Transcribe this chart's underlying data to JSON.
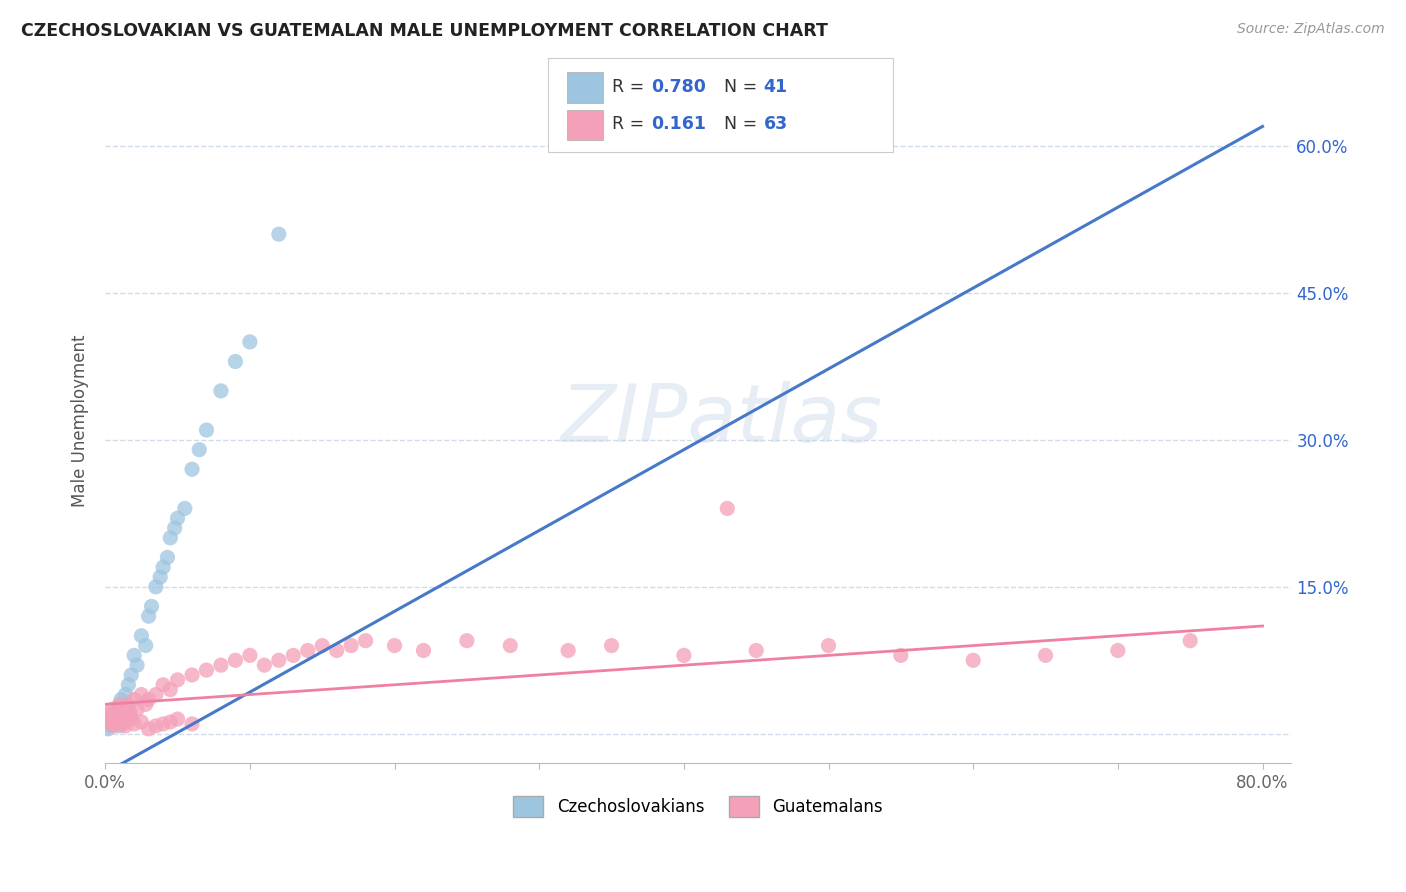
{
  "title": "CZECHOSLOVAKIAN VS GUATEMALAN MALE UNEMPLOYMENT CORRELATION CHART",
  "source": "Source: ZipAtlas.com",
  "ylabel": "Male Unemployment",
  "watermark": "ZIPatlas",
  "czech_scatter_x": [
    0.002,
    0.003,
    0.004,
    0.005,
    0.005,
    0.006,
    0.007,
    0.008,
    0.008,
    0.009,
    0.01,
    0.01,
    0.011,
    0.012,
    0.013,
    0.014,
    0.015,
    0.016,
    0.017,
    0.018,
    0.02,
    0.022,
    0.025,
    0.028,
    0.03,
    0.032,
    0.035,
    0.038,
    0.04,
    0.043,
    0.045,
    0.048,
    0.05,
    0.055,
    0.06,
    0.065,
    0.07,
    0.08,
    0.09,
    0.1,
    0.12
  ],
  "czech_scatter_y": [
    0.005,
    0.008,
    0.01,
    0.015,
    0.02,
    0.012,
    0.018,
    0.025,
    0.01,
    0.022,
    0.03,
    0.008,
    0.035,
    0.02,
    0.015,
    0.04,
    0.025,
    0.05,
    0.018,
    0.06,
    0.08,
    0.07,
    0.1,
    0.09,
    0.12,
    0.13,
    0.15,
    0.16,
    0.17,
    0.18,
    0.2,
    0.21,
    0.22,
    0.23,
    0.27,
    0.29,
    0.31,
    0.35,
    0.38,
    0.4,
    0.51
  ],
  "guat_scatter_x": [
    0.002,
    0.003,
    0.004,
    0.005,
    0.006,
    0.007,
    0.008,
    0.009,
    0.01,
    0.011,
    0.012,
    0.013,
    0.014,
    0.015,
    0.016,
    0.017,
    0.018,
    0.02,
    0.022,
    0.025,
    0.028,
    0.03,
    0.035,
    0.04,
    0.045,
    0.05,
    0.06,
    0.07,
    0.08,
    0.09,
    0.1,
    0.11,
    0.12,
    0.13,
    0.14,
    0.15,
    0.16,
    0.17,
    0.18,
    0.2,
    0.22,
    0.25,
    0.28,
    0.32,
    0.35,
    0.4,
    0.45,
    0.5,
    0.55,
    0.6,
    0.65,
    0.7,
    0.75,
    0.014,
    0.02,
    0.025,
    0.03,
    0.035,
    0.04,
    0.045,
    0.05,
    0.06,
    0.43
  ],
  "guat_scatter_y": [
    0.02,
    0.01,
    0.015,
    0.025,
    0.008,
    0.018,
    0.012,
    0.022,
    0.03,
    0.015,
    0.01,
    0.025,
    0.02,
    0.018,
    0.03,
    0.022,
    0.015,
    0.035,
    0.025,
    0.04,
    0.03,
    0.035,
    0.04,
    0.05,
    0.045,
    0.055,
    0.06,
    0.065,
    0.07,
    0.075,
    0.08,
    0.07,
    0.075,
    0.08,
    0.085,
    0.09,
    0.085,
    0.09,
    0.095,
    0.09,
    0.085,
    0.095,
    0.09,
    0.085,
    0.09,
    0.08,
    0.085,
    0.09,
    0.08,
    0.075,
    0.08,
    0.085,
    0.095,
    0.008,
    0.01,
    0.012,
    0.005,
    0.008,
    0.01,
    0.012,
    0.015,
    0.01,
    0.23
  ],
  "czech_line_x": [
    0.0,
    0.8
  ],
  "czech_line_y": [
    -0.04,
    0.62
  ],
  "guat_line_x": [
    0.0,
    0.8
  ],
  "guat_line_y": [
    0.03,
    0.11
  ],
  "xlim": [
    0.0,
    0.82
  ],
  "ylim": [
    -0.03,
    0.67
  ],
  "yticks": [
    0.0,
    0.15,
    0.3,
    0.45,
    0.6
  ],
  "ytick_labels_right": [
    "",
    "15.0%",
    "30.0%",
    "45.0%",
    "60.0%"
  ],
  "xticks": [
    0.0,
    0.1,
    0.2,
    0.3,
    0.4,
    0.5,
    0.6,
    0.7,
    0.8
  ],
  "xtick_labels": [
    "0.0%",
    "",
    "",
    "",
    "",
    "",
    "",
    "",
    "80.0%"
  ],
  "czech_color": "#9ec5e0",
  "guat_color": "#f4a0b8",
  "czech_line_color": "#4878c8",
  "guat_line_color": "#f080a0",
  "bg_color": "#ffffff",
  "grid_color": "#d0dce8",
  "title_color": "#222222",
  "source_color": "#999999",
  "legend_text_color": "#3366cc",
  "legend_label_color": "#333333",
  "R_czech": "0.780",
  "N_czech": "41",
  "R_guat": "0.161",
  "N_guat": "63"
}
